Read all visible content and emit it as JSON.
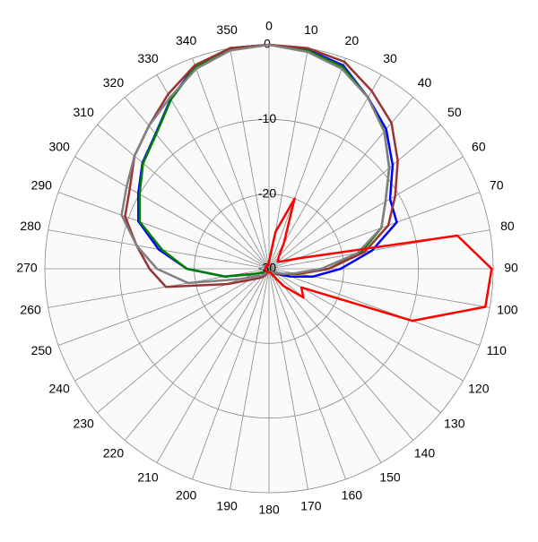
{
  "chart_data": {
    "type": "polar",
    "theta": [
      0,
      10,
      20,
      30,
      40,
      50,
      60,
      70,
      80,
      90,
      100,
      110,
      120,
      130,
      140,
      150,
      160,
      170,
      180,
      190,
      200,
      210,
      220,
      230,
      240,
      250,
      260,
      270,
      280,
      290,
      300,
      310,
      320,
      330,
      340,
      350
    ],
    "rlim": [
      -30,
      0
    ],
    "rticks": [
      0,
      -10,
      -20,
      -30
    ],
    "grid": true,
    "series": [
      {
        "color": "#0000ff",
        "values": [
          0,
          -0.2,
          -1,
          -3.5,
          -5.6,
          -8.4,
          -11.3,
          -11.8,
          -16,
          -20.4,
          -24,
          -27,
          -28.5,
          -29,
          -29,
          -29.5,
          -29.5,
          -29.5,
          -29.5,
          -29.5,
          -29.5,
          -29.5,
          -29.5,
          -29,
          -29,
          -28,
          -24,
          -19,
          -15,
          -11.4,
          -9.8,
          -7.9,
          -6.4,
          -3.7,
          -1.1,
          0
        ]
      },
      {
        "color": "#008000",
        "values": [
          0,
          -0.3,
          -1.2,
          -3.5,
          -6,
          -9,
          -12,
          -14,
          -17.5,
          -22,
          -26,
          -28,
          -29,
          -29,
          -29.5,
          -29.5,
          -29.5,
          -29.5,
          -29.5,
          -29.5,
          -29.5,
          -29.5,
          -29.5,
          -29,
          -29,
          -28,
          -24,
          -19,
          -15.5,
          -11.6,
          -10,
          -8,
          -6.5,
          -3.8,
          -1.2,
          0
        ]
      },
      {
        "color": "#993333",
        "values": [
          0,
          0,
          -0.5,
          -2.5,
          -4.5,
          -7.5,
          -10.5,
          -13,
          -17,
          -22,
          -26,
          -28,
          -28.5,
          -29,
          -29,
          -29.5,
          -29.5,
          -29.5,
          -29.5,
          -29.5,
          -29.5,
          -29,
          -28.5,
          -28,
          -27,
          -24,
          -16,
          -14,
          -12,
          -9.5,
          -8.5,
          -6.5,
          -5,
          -3,
          -1,
          0
        ]
      },
      {
        "color": "#808080",
        "values": [
          0,
          -0.5,
          -1.5,
          -3.5,
          -6,
          -9,
          -12,
          -14,
          -18,
          -23,
          -26.5,
          -28,
          -29,
          -29,
          -29.5,
          -29.5,
          -29.5,
          -29.5,
          -29.5,
          -29.5,
          -29.5,
          -29.5,
          -29,
          -28.5,
          -28,
          -26,
          -19,
          -15,
          -12,
          -9,
          -8,
          -6.5,
          -5,
          -3.5,
          -1.5,
          -0.3
        ]
      },
      {
        "color": "#ff0000",
        "values": [
          -29,
          -25,
          -20,
          -26,
          -28,
          -28.5,
          -28,
          -26,
          -4.4,
          -0.2,
          -0.6,
          -9.6,
          -25,
          -24,
          -27,
          -29,
          -29.5,
          -29.5,
          -29.5,
          -29.5,
          -29.5,
          -29.5,
          -29.5,
          -29.5,
          -29.5,
          -29.5,
          -29.5,
          -29.5,
          -29.5,
          -29.5,
          -29.5,
          -29.5,
          -29.5,
          -29.5,
          -29.5,
          -29.5
        ]
      }
    ]
  }
}
